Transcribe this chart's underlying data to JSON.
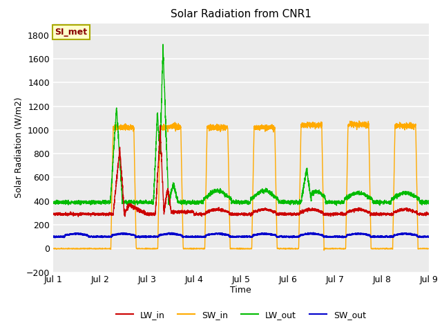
{
  "title": "Solar Radiation from CNR1",
  "xlabel": "Time",
  "ylabel": "Solar Radiation (W/m2)",
  "ylim": [
    -200,
    1900
  ],
  "yticks": [
    -200,
    0,
    200,
    400,
    600,
    800,
    1000,
    1200,
    1400,
    1600,
    1800
  ],
  "xlim": [
    0,
    8
  ],
  "xtick_labels": [
    "Jul 1",
    "Jul 2",
    "Jul 3",
    "Jul 4",
    "Jul 5",
    "Jul 6",
    "Jul 7",
    "Jul 8",
    "Jul 9"
  ],
  "xtick_positions": [
    0,
    1,
    2,
    3,
    4,
    5,
    6,
    7,
    8
  ],
  "colors": {
    "LW_in": "#cc0000",
    "SW_in": "#ffaa00",
    "LW_out": "#00bb00",
    "SW_out": "#0000cc"
  },
  "annotation_text": "SI_met",
  "annotation_color": "#880000",
  "annotation_bg": "#ffffcc",
  "annotation_edge": "#aaaa00",
  "plot_bg": "#ebebeb",
  "grid_color": "#ffffff",
  "linewidth": 1.0,
  "figsize": [
    6.4,
    4.8
  ],
  "dpi": 100
}
